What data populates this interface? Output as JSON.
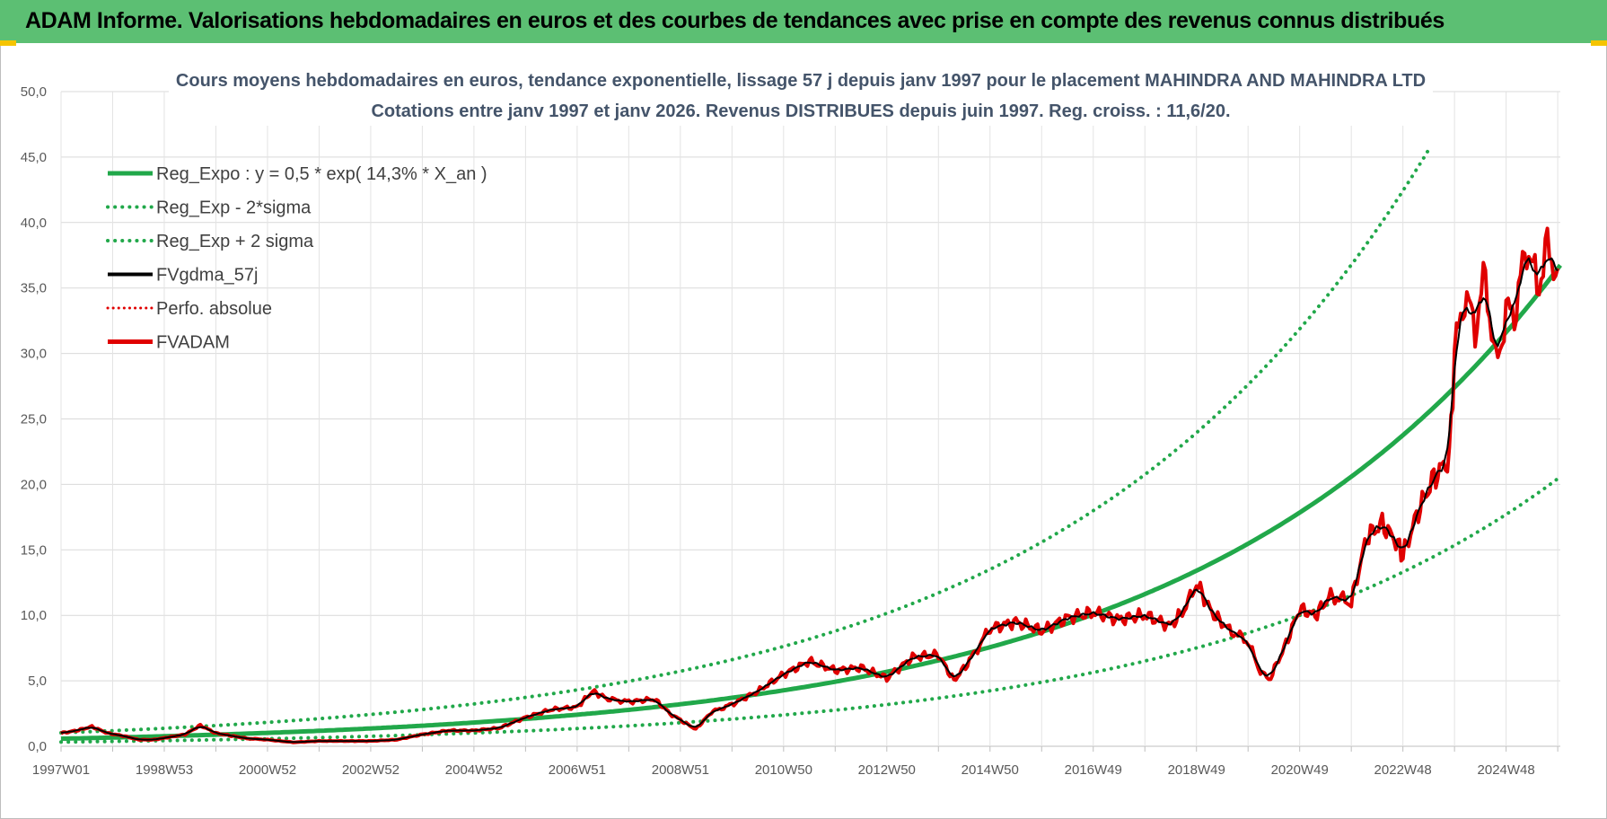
{
  "banner": {
    "title": "ADAM Informe. Valorisations hebdomadaires en euros et des courbes de tendances avec prise en compte des revenus connus distribués"
  },
  "chart_data": {
    "type": "line",
    "title_line1": "Cours moyens hebdomadaires en euros, tendance exponentielle, lissage 57 j depuis janv 1997 pour le placement MAHINDRA AND MAHINDRA LTD",
    "title_line2": "Cotations entre janv 1997 et janv 2026. Revenus DISTRIBUES depuis juin 1997. Reg. croiss. : 11,6/20.",
    "xlabel": "",
    "ylabel": "",
    "x_range_years": [
      1997.0,
      2026.05
    ],
    "ylim": [
      0,
      50
    ],
    "yticks": [
      "0,0",
      "5,0",
      "10,0",
      "15,0",
      "20,0",
      "25,0",
      "30,0",
      "35,0",
      "40,0",
      "45,0",
      "50,0"
    ],
    "xticks": [
      {
        "label": "1997W01",
        "year": 1997.0
      },
      {
        "label": "1998W53",
        "year": 1999.0
      },
      {
        "label": "2000W52",
        "year": 2001.0
      },
      {
        "label": "2002W52",
        "year": 2003.0
      },
      {
        "label": "2004W52",
        "year": 2005.0
      },
      {
        "label": "2006W51",
        "year": 2007.0
      },
      {
        "label": "2008W51",
        "year": 2009.0
      },
      {
        "label": "2010W50",
        "year": 2011.0
      },
      {
        "label": "2012W50",
        "year": 2013.0
      },
      {
        "label": "2014W50",
        "year": 2015.0
      },
      {
        "label": "2016W49",
        "year": 2017.0
      },
      {
        "label": "2018W49",
        "year": 2019.0
      },
      {
        "label": "2020W49",
        "year": 2021.0
      },
      {
        "label": "2022W48",
        "year": 2023.0
      },
      {
        "label": "2024W48",
        "year": 2025.0
      }
    ],
    "grid": true,
    "legend_position": "top-left",
    "regression": {
      "a": 0.5,
      "growth_rate": 0.143,
      "sigma_factor": 0.56
    },
    "series": [
      {
        "name": "Reg_Expo : y = 0,5 * exp( 14,3% *  X_an )",
        "kind": "regression",
        "color": "#21a84a",
        "style": "solid"
      },
      {
        "name": "Reg_Exp - 2*sigma",
        "kind": "lower",
        "color": "#21a84a",
        "style": "dotted"
      },
      {
        "name": "Reg_Exp + 2 sigma",
        "kind": "upper",
        "color": "#21a84a",
        "style": "dotted"
      },
      {
        "name": "FVgdma_57j",
        "kind": "smoothed",
        "color": "#000000",
        "style": "solid"
      },
      {
        "name": "Perfo. absolue",
        "kind": "absolute",
        "color": "#e00000",
        "style": "dotted"
      },
      {
        "name": "FVADAM",
        "kind": "price",
        "color": "#e00000",
        "style": "solid",
        "x": [
          1997.0,
          1997.3,
          1997.6,
          1997.9,
          1998.2,
          1998.5,
          1998.8,
          1999.1,
          1999.4,
          1999.7,
          2000.0,
          2000.3,
          2000.6,
          2001.0,
          2001.5,
          2002.0,
          2002.5,
          2003.0,
          2003.5,
          2004.0,
          2004.5,
          2005.0,
          2005.5,
          2006.0,
          2006.5,
          2007.0,
          2007.3,
          2007.6,
          2008.0,
          2008.5,
          2008.8,
          2009.0,
          2009.3,
          2009.6,
          2010.0,
          2010.5,
          2011.0,
          2011.5,
          2012.0,
          2012.5,
          2013.0,
          2013.5,
          2014.0,
          2014.3,
          2014.6,
          2015.0,
          2015.5,
          2016.0,
          2016.5,
          2017.0,
          2017.5,
          2018.0,
          2018.5,
          2018.8,
          2019.0,
          2019.3,
          2019.6,
          2020.0,
          2020.2,
          2020.4,
          2020.7,
          2021.0,
          2021.3,
          2021.6,
          2022.0,
          2022.3,
          2022.6,
          2022.9,
          2023.0,
          2023.3,
          2023.6,
          2023.9,
          2024.0,
          2024.2,
          2024.4,
          2024.6,
          2024.8,
          2025.0,
          2025.2,
          2025.4,
          2025.6,
          2025.8,
          2026.0
        ],
        "y": [
          1.0,
          1.2,
          1.5,
          1.0,
          0.8,
          0.5,
          0.5,
          0.7,
          0.9,
          1.6,
          1.0,
          0.8,
          0.6,
          0.5,
          0.3,
          0.4,
          0.4,
          0.4,
          0.5,
          0.9,
          1.2,
          1.2,
          1.4,
          2.2,
          2.8,
          3.0,
          4.2,
          3.6,
          3.4,
          3.6,
          2.5,
          2.0,
          1.3,
          2.6,
          3.2,
          4.2,
          5.5,
          6.5,
          5.8,
          6.0,
          5.2,
          6.8,
          7.0,
          5.0,
          6.5,
          9.0,
          9.5,
          8.8,
          9.8,
          10.2,
          9.7,
          10.0,
          9.2,
          10.6,
          12.5,
          10.2,
          9.0,
          8.0,
          6.0,
          5.0,
          7.5,
          10.5,
          10.0,
          11.5,
          11.0,
          16.0,
          17.0,
          15.5,
          14.5,
          18.0,
          20.5,
          22.0,
          30.0,
          34.5,
          32.0,
          36.0,
          29.0,
          33.0,
          33.5,
          38.5,
          35.0,
          38.0,
          36.5
        ]
      }
    ]
  }
}
